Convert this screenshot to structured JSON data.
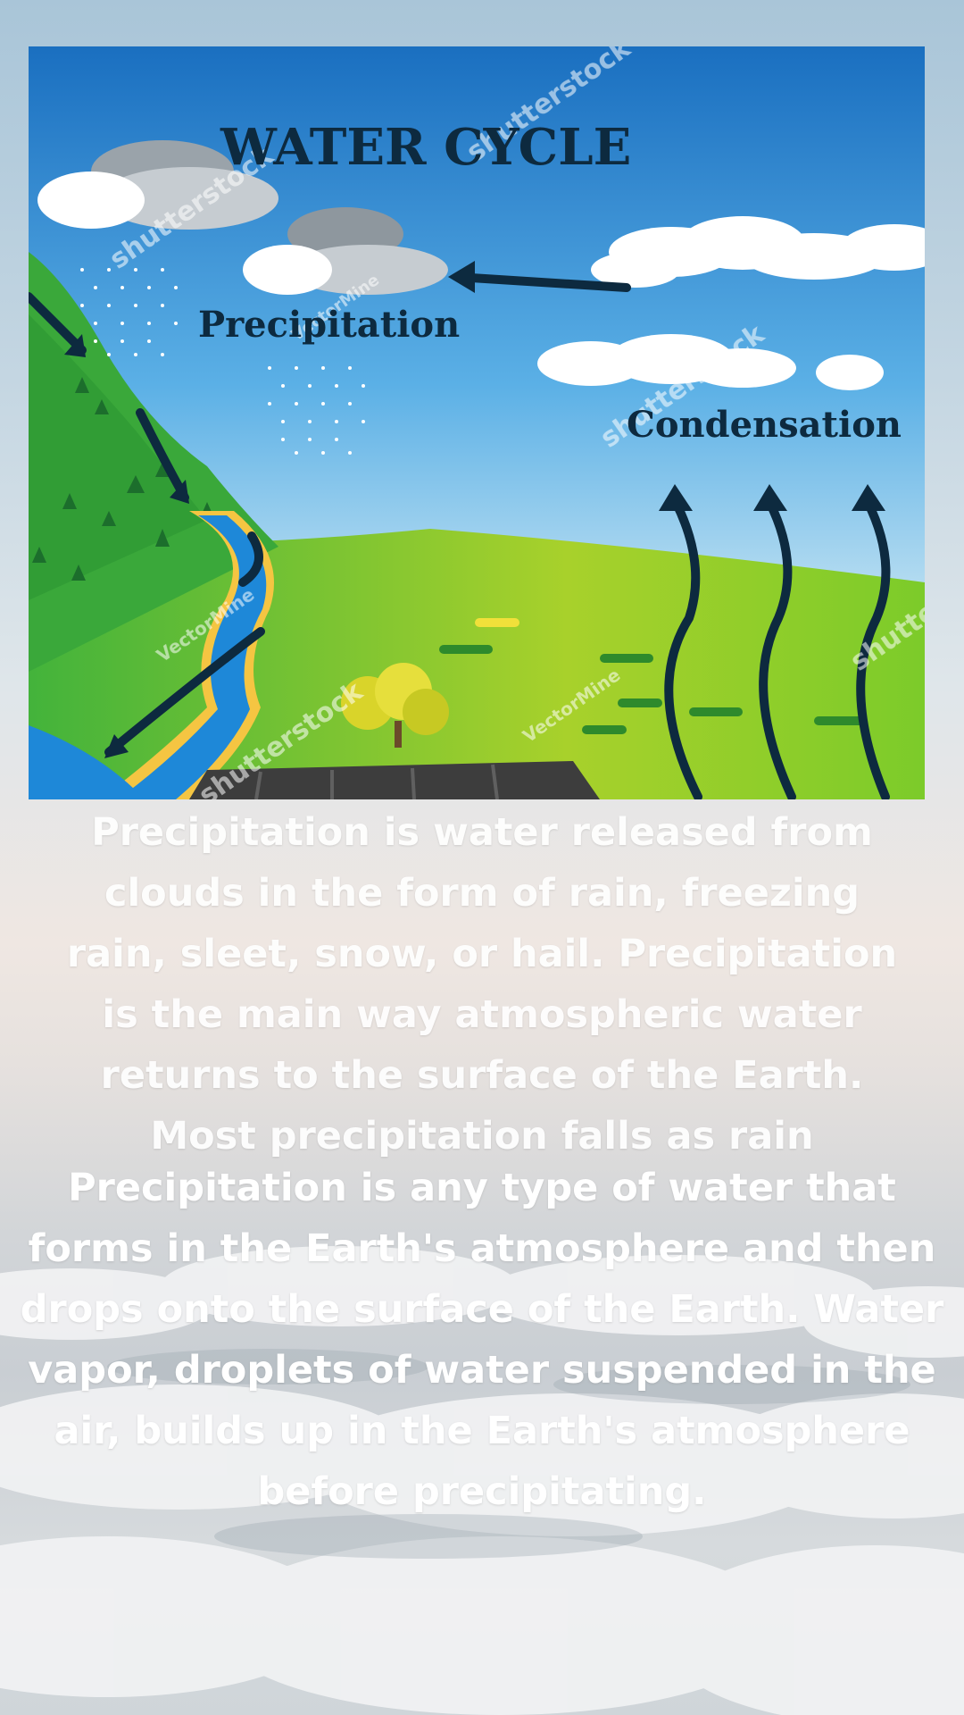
{
  "poster": {
    "title": "WATER CYCLE",
    "label_precipitation": "Precipitation",
    "label_condensation": "Condensation",
    "watermark_texts": [
      "shutterstock",
      "VectorMine",
      "shutterstock",
      "shutterstock",
      "VectorMine",
      "VectorMine",
      "shutterstock",
      "shutte"
    ]
  },
  "paragraphs": {
    "first": "Precipitation is water released from clouds in the form of rain, freezing rain, sleet, snow, or hail. Precipitation is the main way atmospheric water returns to the surface of the Earth. Most precipitation falls as rain",
    "second": "Precipitation is any type of water that forms in the Earth's atmosphere and then drops onto the surface of the Earth. Water vapor, droplets of water suspended in the air, builds up in the Earth's atmosphere before precipitating."
  },
  "colors": {
    "sky_top": "#1a6fc0",
    "sky_bottom": "#cfe9f4",
    "grass": "#7ccb2a",
    "river": "#1e88d8",
    "arrow": "#0d2a3f",
    "title": "#0d2a3f"
  }
}
